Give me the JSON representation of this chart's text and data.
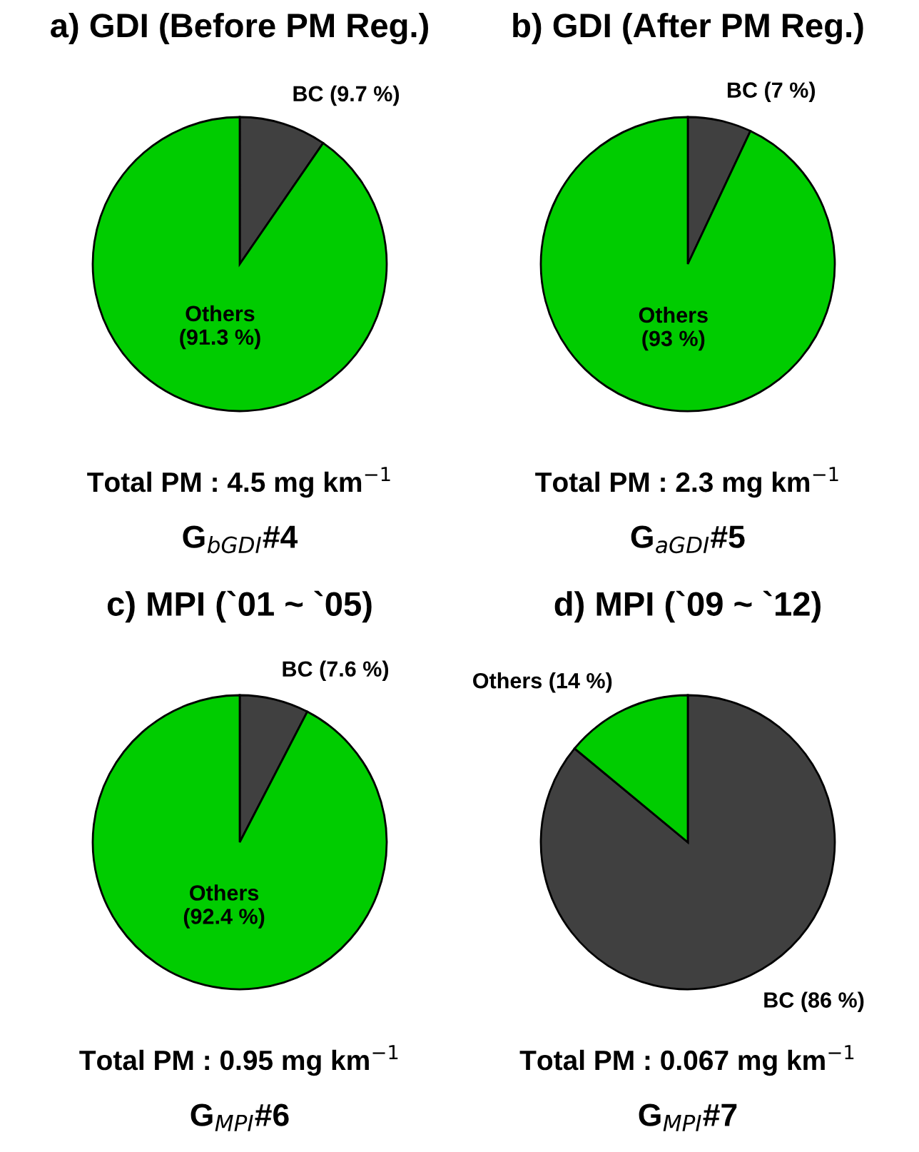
{
  "chart_data": [
    {
      "type": "pie",
      "title": "a) GDI (Before PM Reg.)",
      "categories": [
        "BC",
        "Others"
      ],
      "values": [
        9.7,
        91.3
      ],
      "colors": [
        "#404040",
        "#00cc00"
      ],
      "value_labels": [
        "(9.7 %)",
        "(91.3 %)"
      ],
      "annotations": [
        "Total PM : 4.5 mg km$^{−1}$",
        "G$_{bGDI}$#4"
      ]
    },
    {
      "type": "pie",
      "title": "b) GDI (After PM Reg.)",
      "categories": [
        "BC",
        "Others"
      ],
      "values": [
        7,
        93
      ],
      "colors": [
        "#404040",
        "#00cc00"
      ],
      "value_labels": [
        "(7 %)",
        "(93 %)"
      ],
      "annotations": [
        "Total PM : 2.3 mg km$^{−1}$",
        "G$_{aGDI}$#5"
      ]
    },
    {
      "type": "pie",
      "title": "c) MPI (`01 ~ `05)",
      "categories": [
        "BC",
        "Others"
      ],
      "values": [
        7.6,
        92.4
      ],
      "colors": [
        "#404040",
        "#00cc00"
      ],
      "value_labels": [
        "(7.6 %)",
        "(92.4 %)"
      ],
      "annotations": [
        "Total PM : 0.95 mg km$^{−1}$",
        "G$_{MPI}$#6"
      ]
    },
    {
      "type": "pie",
      "title": "d) MPI (`09 ~ `12)",
      "categories": [
        "BC",
        "Others"
      ],
      "values": [
        86,
        14
      ],
      "colors": [
        "#404040",
        "#00cc00"
      ],
      "value_labels": [
        "(86 %)",
        "(14 %)"
      ],
      "annotations": [
        "Total PM : 0.067 mg km$^{−1}$",
        "G$_{MPI}$#7"
      ]
    }
  ]
}
